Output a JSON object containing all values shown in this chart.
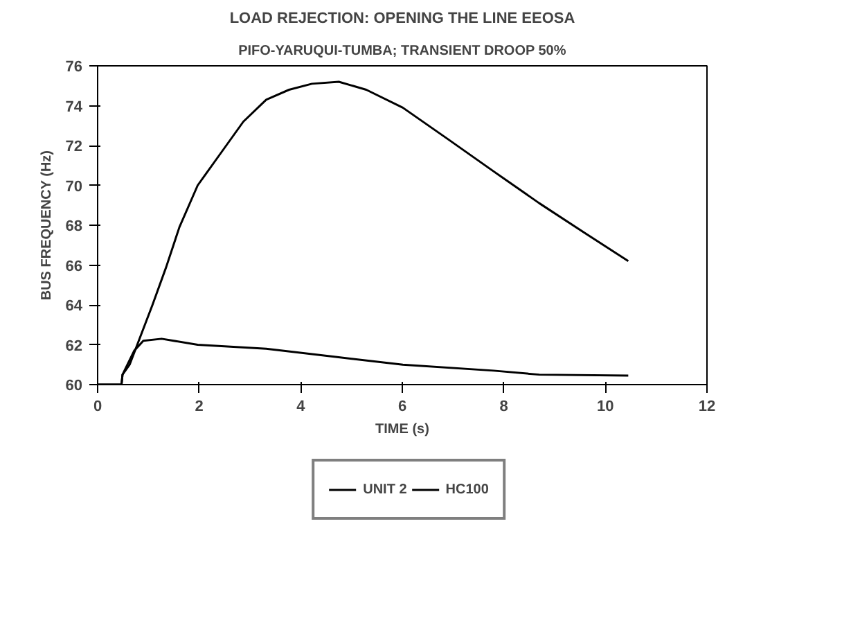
{
  "chart_data": {
    "type": "line",
    "title": "LOAD REJECTION: OPENING THE LINE EEOSA",
    "subtitle": "PIFO-YARUQUI-TUMBA; TRANSIENT DROOP 50%",
    "xlabel": "TIME (s)",
    "ylabel": "BUS FREQUENCY (Hz)",
    "xlim": [
      0,
      12
    ],
    "xticks": [
      0,
      2,
      4,
      6,
      8,
      10,
      12
    ],
    "ylim": [
      60,
      76
    ],
    "yticks": [
      60,
      62,
      64,
      66,
      68,
      70,
      72,
      74,
      76
    ],
    "grid": false,
    "legend": "bottom",
    "marker": "none",
    "line_style": "solid",
    "series": [
      {
        "name": "UNIT 2",
        "color": "#000000",
        "x": [
          0,
          0.47,
          0.49,
          0.63,
          0.81,
          1.08,
          1.35,
          1.61,
          1.97,
          2.42,
          2.87,
          3.32,
          3.77,
          4.22,
          4.75,
          5.29,
          6.01,
          6.91,
          7.8,
          8.7,
          9.6,
          10.45
        ],
        "values": [
          60,
          60,
          60.5,
          61.0,
          62.2,
          64.0,
          65.9,
          67.9,
          70.0,
          71.6,
          73.2,
          74.3,
          74.8,
          75.1,
          75.2,
          74.8,
          73.9,
          72.3,
          70.7,
          69.1,
          67.6,
          66.2
        ]
      },
      {
        "name": "HC100",
        "color": "#000000",
        "x": [
          0,
          0.47,
          0.49,
          0.72,
          0.9,
          1.26,
          1.97,
          3.32,
          4.66,
          6.01,
          7.8,
          8.7,
          10.45
        ],
        "values": [
          60,
          60,
          60.5,
          61.7,
          62.2,
          62.3,
          62.0,
          61.8,
          61.4,
          61.0,
          60.7,
          60.5,
          60.45
        ]
      }
    ]
  }
}
